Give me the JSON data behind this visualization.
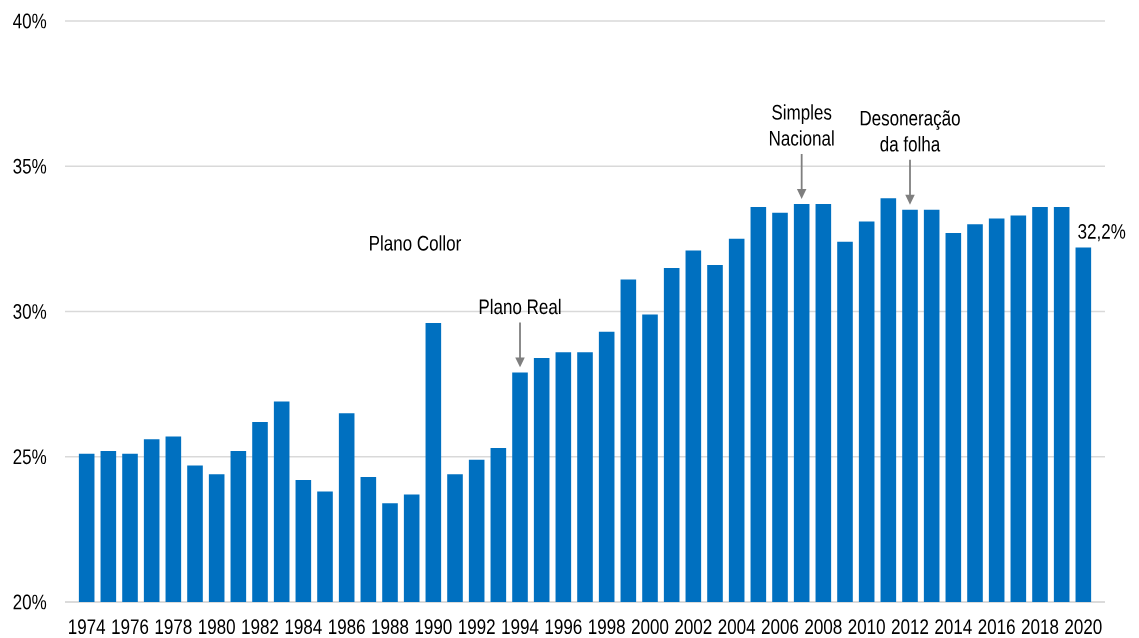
{
  "chart_data": {
    "type": "bar",
    "x": [
      1974,
      1975,
      1976,
      1977,
      1978,
      1979,
      1980,
      1981,
      1982,
      1983,
      1984,
      1985,
      1986,
      1987,
      1988,
      1989,
      1990,
      1991,
      1992,
      1993,
      1994,
      1995,
      1996,
      1997,
      1998,
      1999,
      2000,
      2001,
      2002,
      2003,
      2004,
      2005,
      2006,
      2007,
      2008,
      2009,
      2010,
      2011,
      2012,
      2013,
      2014,
      2015,
      2016,
      2017,
      2018,
      2019,
      2020
    ],
    "values": [
      25.1,
      25.2,
      25.1,
      25.6,
      25.7,
      24.7,
      24.4,
      25.2,
      26.2,
      26.9,
      24.2,
      23.8,
      26.5,
      24.3,
      23.4,
      23.7,
      29.6,
      24.4,
      24.9,
      25.3,
      27.9,
      28.4,
      28.6,
      28.6,
      29.3,
      31.1,
      29.9,
      31.5,
      32.1,
      31.6,
      32.5,
      33.6,
      33.4,
      33.7,
      33.7,
      32.4,
      33.1,
      33.9,
      33.5,
      33.5,
      32.7,
      33.0,
      33.2,
      33.3,
      33.6,
      33.6,
      32.2
    ],
    "color": "#0070c0",
    "xlim": [
      1973,
      2021
    ],
    "xticks": [
      1974,
      1976,
      1978,
      1980,
      1982,
      1984,
      1986,
      1988,
      1990,
      1992,
      1994,
      1996,
      1998,
      2000,
      2002,
      2004,
      2006,
      2008,
      2010,
      2012,
      2014,
      2016,
      2018,
      2020
    ],
    "ylim": [
      20,
      40
    ],
    "yticks": [
      {
        "value": 20,
        "label": "20%"
      },
      {
        "value": 25,
        "label": "25%"
      },
      {
        "value": 30,
        "label": "30%"
      },
      {
        "value": 35,
        "label": "35%"
      },
      {
        "value": 40,
        "label": "40%"
      }
    ],
    "grid": "y",
    "value_labels": [
      null,
      null,
      null,
      null,
      null,
      null,
      null,
      null,
      null,
      null,
      null,
      null,
      null,
      null,
      null,
      null,
      null,
      null,
      null,
      null,
      null,
      null,
      null,
      null,
      null,
      null,
      null,
      null,
      null,
      null,
      null,
      null,
      null,
      null,
      null,
      null,
      null,
      null,
      null,
      null,
      null,
      null,
      null,
      null,
      null,
      null,
      "32,2%"
    ],
    "annotations": [
      "Plano Collor",
      {
        "text": "Plano Real",
        "x": 1994,
        "y": 27.9
      },
      {
        "text": "Simples Nacional",
        "x": 2007,
        "y": 33.7
      },
      {
        "text": "Desoneração da folha",
        "x": 2012,
        "y": 33.5
      }
    ]
  }
}
